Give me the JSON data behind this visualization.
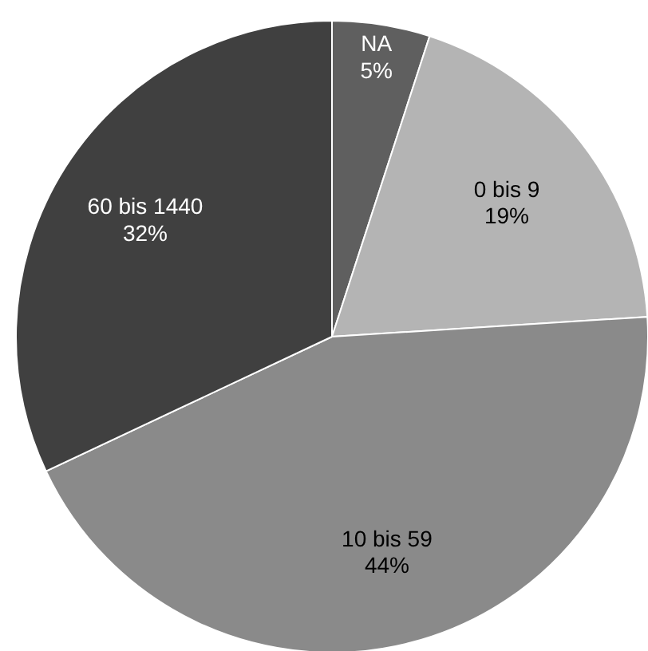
{
  "chart_data": {
    "type": "pie",
    "categories": [
      "NA",
      "0 bis 9",
      "10 bis 59",
      "60 bis 1440"
    ],
    "values": [
      5,
      19,
      44,
      32
    ],
    "value_labels": [
      "5%",
      "19%",
      "44%",
      "32%"
    ],
    "colors": [
      "#5f5f5f",
      "#b4b4b4",
      "#8a8a8a",
      "#404040"
    ]
  }
}
